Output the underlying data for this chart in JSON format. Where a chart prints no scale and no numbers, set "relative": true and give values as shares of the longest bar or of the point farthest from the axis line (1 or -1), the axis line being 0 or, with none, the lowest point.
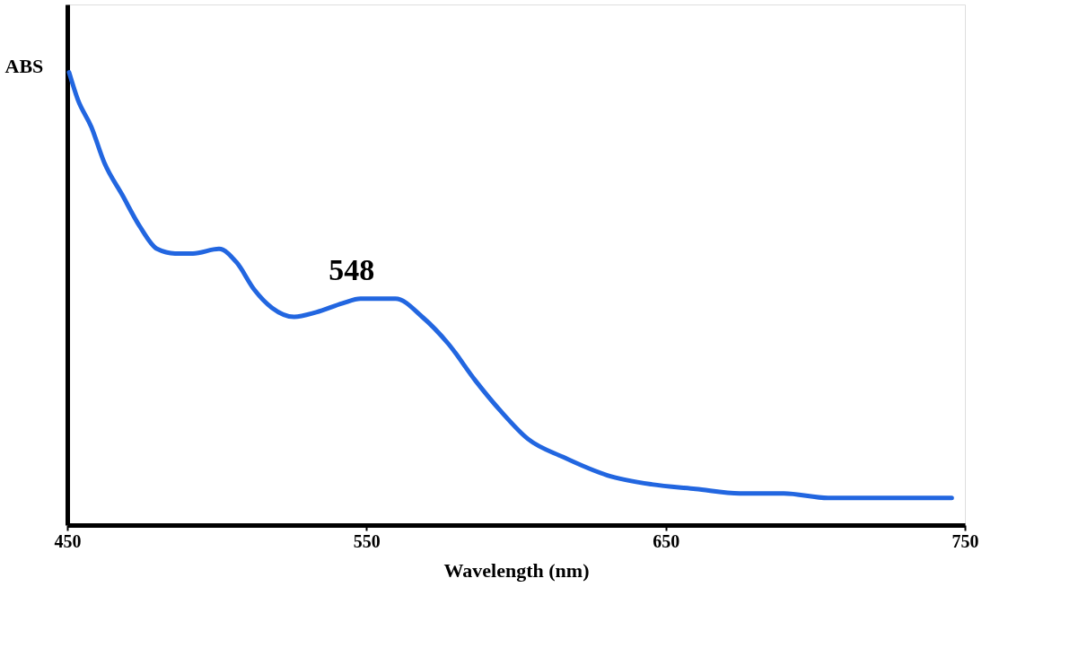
{
  "chart_data": {
    "type": "line",
    "relative": true,
    "xlabel": "Wavelength (nm)",
    "ylabel": "ABS",
    "xlim": [
      450,
      750
    ],
    "xticks": [
      450,
      550,
      650,
      750
    ],
    "grid": false,
    "marker": "none",
    "line_style": "solid",
    "x": [
      450.6,
      453.5,
      458,
      462.4,
      468.3,
      474.2,
      480,
      486,
      492,
      500.7,
      506.6,
      512.5,
      518.4,
      525.8,
      533.2,
      542,
      548,
      559.7,
      568.6,
      577.4,
      586.3,
      595.1,
      604,
      615.8,
      630.5,
      645.3,
      660,
      674.8,
      689.5,
      704.3,
      719,
      745.6
    ],
    "series": [
      {
        "color": "#2266e0",
        "values": [
          1.0,
          0.94,
          0.88,
          0.8,
          0.73,
          0.66,
          0.61,
          0.6,
          0.6,
          0.61,
          0.58,
          0.52,
          0.48,
          0.46,
          0.47,
          0.49,
          0.5,
          0.5,
          0.46,
          0.4,
          0.32,
          0.25,
          0.19,
          0.15,
          0.11,
          0.09,
          0.08,
          0.07,
          0.07,
          0.06,
          0.06,
          0.06
        ]
      }
    ],
    "annotations": [
      {
        "text": "548",
        "x": 548,
        "y": 0.5
      }
    ]
  }
}
